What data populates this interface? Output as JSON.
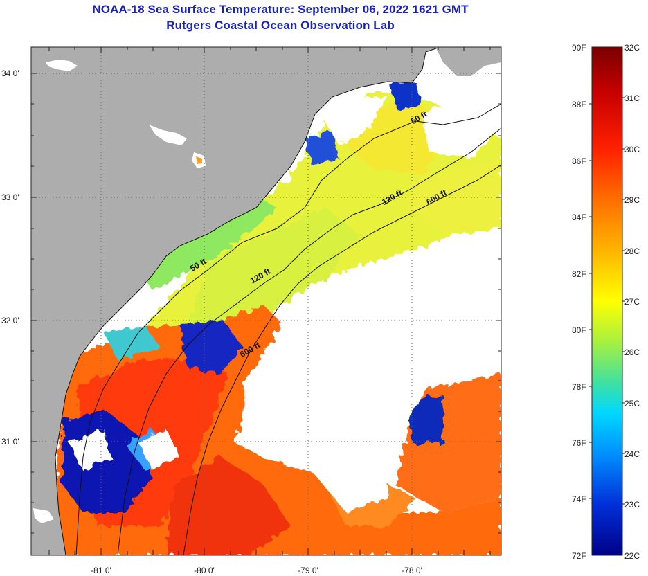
{
  "title": {
    "line1": "NOAA-18 Sea Surface Temperature:  September 06, 2022 1621 GMT",
    "line2": "Rutgers Coastal Ocean Observation Lab"
  },
  "axes": {
    "lat_ticks": [
      "34 0'",
      "33 0'",
      "32 0'",
      "31 0'"
    ],
    "lon_ticks": [
      "-81 0'",
      "-80 0'",
      "-79 0'",
      "-78 0'"
    ]
  },
  "contours": [
    "50 ft",
    "120 ft",
    "600 ft"
  ],
  "contour_labels": [
    {
      "text": "50 ft",
      "depth_ft": 50,
      "lat": 33.62,
      "lon": -77.92
    },
    {
      "text": "50 ft",
      "depth_ft": 50,
      "lat": 32.42,
      "lon": -80.05
    },
    {
      "text": "120 ft",
      "depth_ft": 120,
      "lat": 32.97,
      "lon": -78.18
    },
    {
      "text": "120 ft",
      "depth_ft": 120,
      "lat": 32.33,
      "lon": -79.45
    },
    {
      "text": "600 ft",
      "depth_ft": 600,
      "lat": 32.97,
      "lon": -77.75
    },
    {
      "text": "600 ft",
      "depth_ft": 600,
      "lat": 31.73,
      "lon": -79.55
    }
  ],
  "colorbar": {
    "fahrenheit_labels": [
      "90F",
      "88F",
      "86F",
      "84F",
      "82F",
      "80F",
      "78F",
      "76F",
      "74F",
      "72F"
    ],
    "celsius_labels": [
      "32C",
      "31C",
      "30C",
      "29C",
      "28C",
      "27C",
      "26C",
      "25C",
      "24C",
      "23C",
      "22C"
    ],
    "colors": [
      "#7a0000",
      "#c80000",
      "#ff2000",
      "#ff6e00",
      "#ffb400",
      "#ffff00",
      "#a8f040",
      "#40e0a0",
      "#00d8ff",
      "#0090ff",
      "#0030d8",
      "#000088"
    ]
  },
  "colors": {
    "land": "#adadad",
    "no_data": "#ffffff",
    "title": "#1a22b8"
  }
}
